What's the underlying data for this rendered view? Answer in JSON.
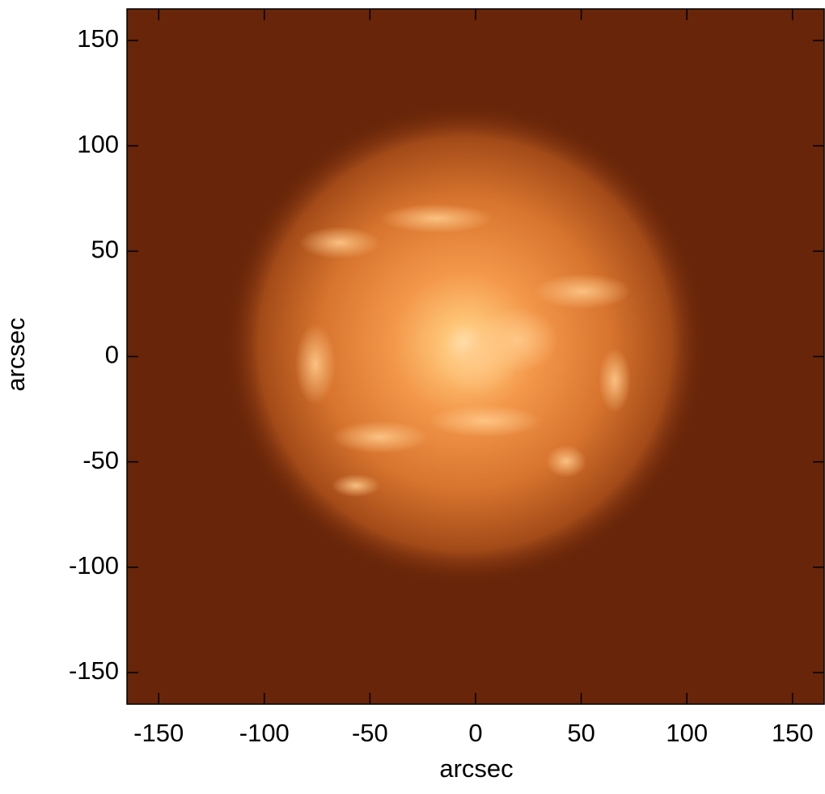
{
  "chart_data": {
    "type": "image",
    "x_label": "arcsec",
    "y_label": "arcsec",
    "xlim": [
      -165,
      165
    ],
    "ylim": [
      -165,
      165
    ],
    "xticks": [
      -150,
      -100,
      -50,
      0,
      50,
      100,
      150
    ],
    "yticks": [
      -150,
      -100,
      -50,
      0,
      50,
      100,
      150
    ],
    "background": "#682509"
  }
}
